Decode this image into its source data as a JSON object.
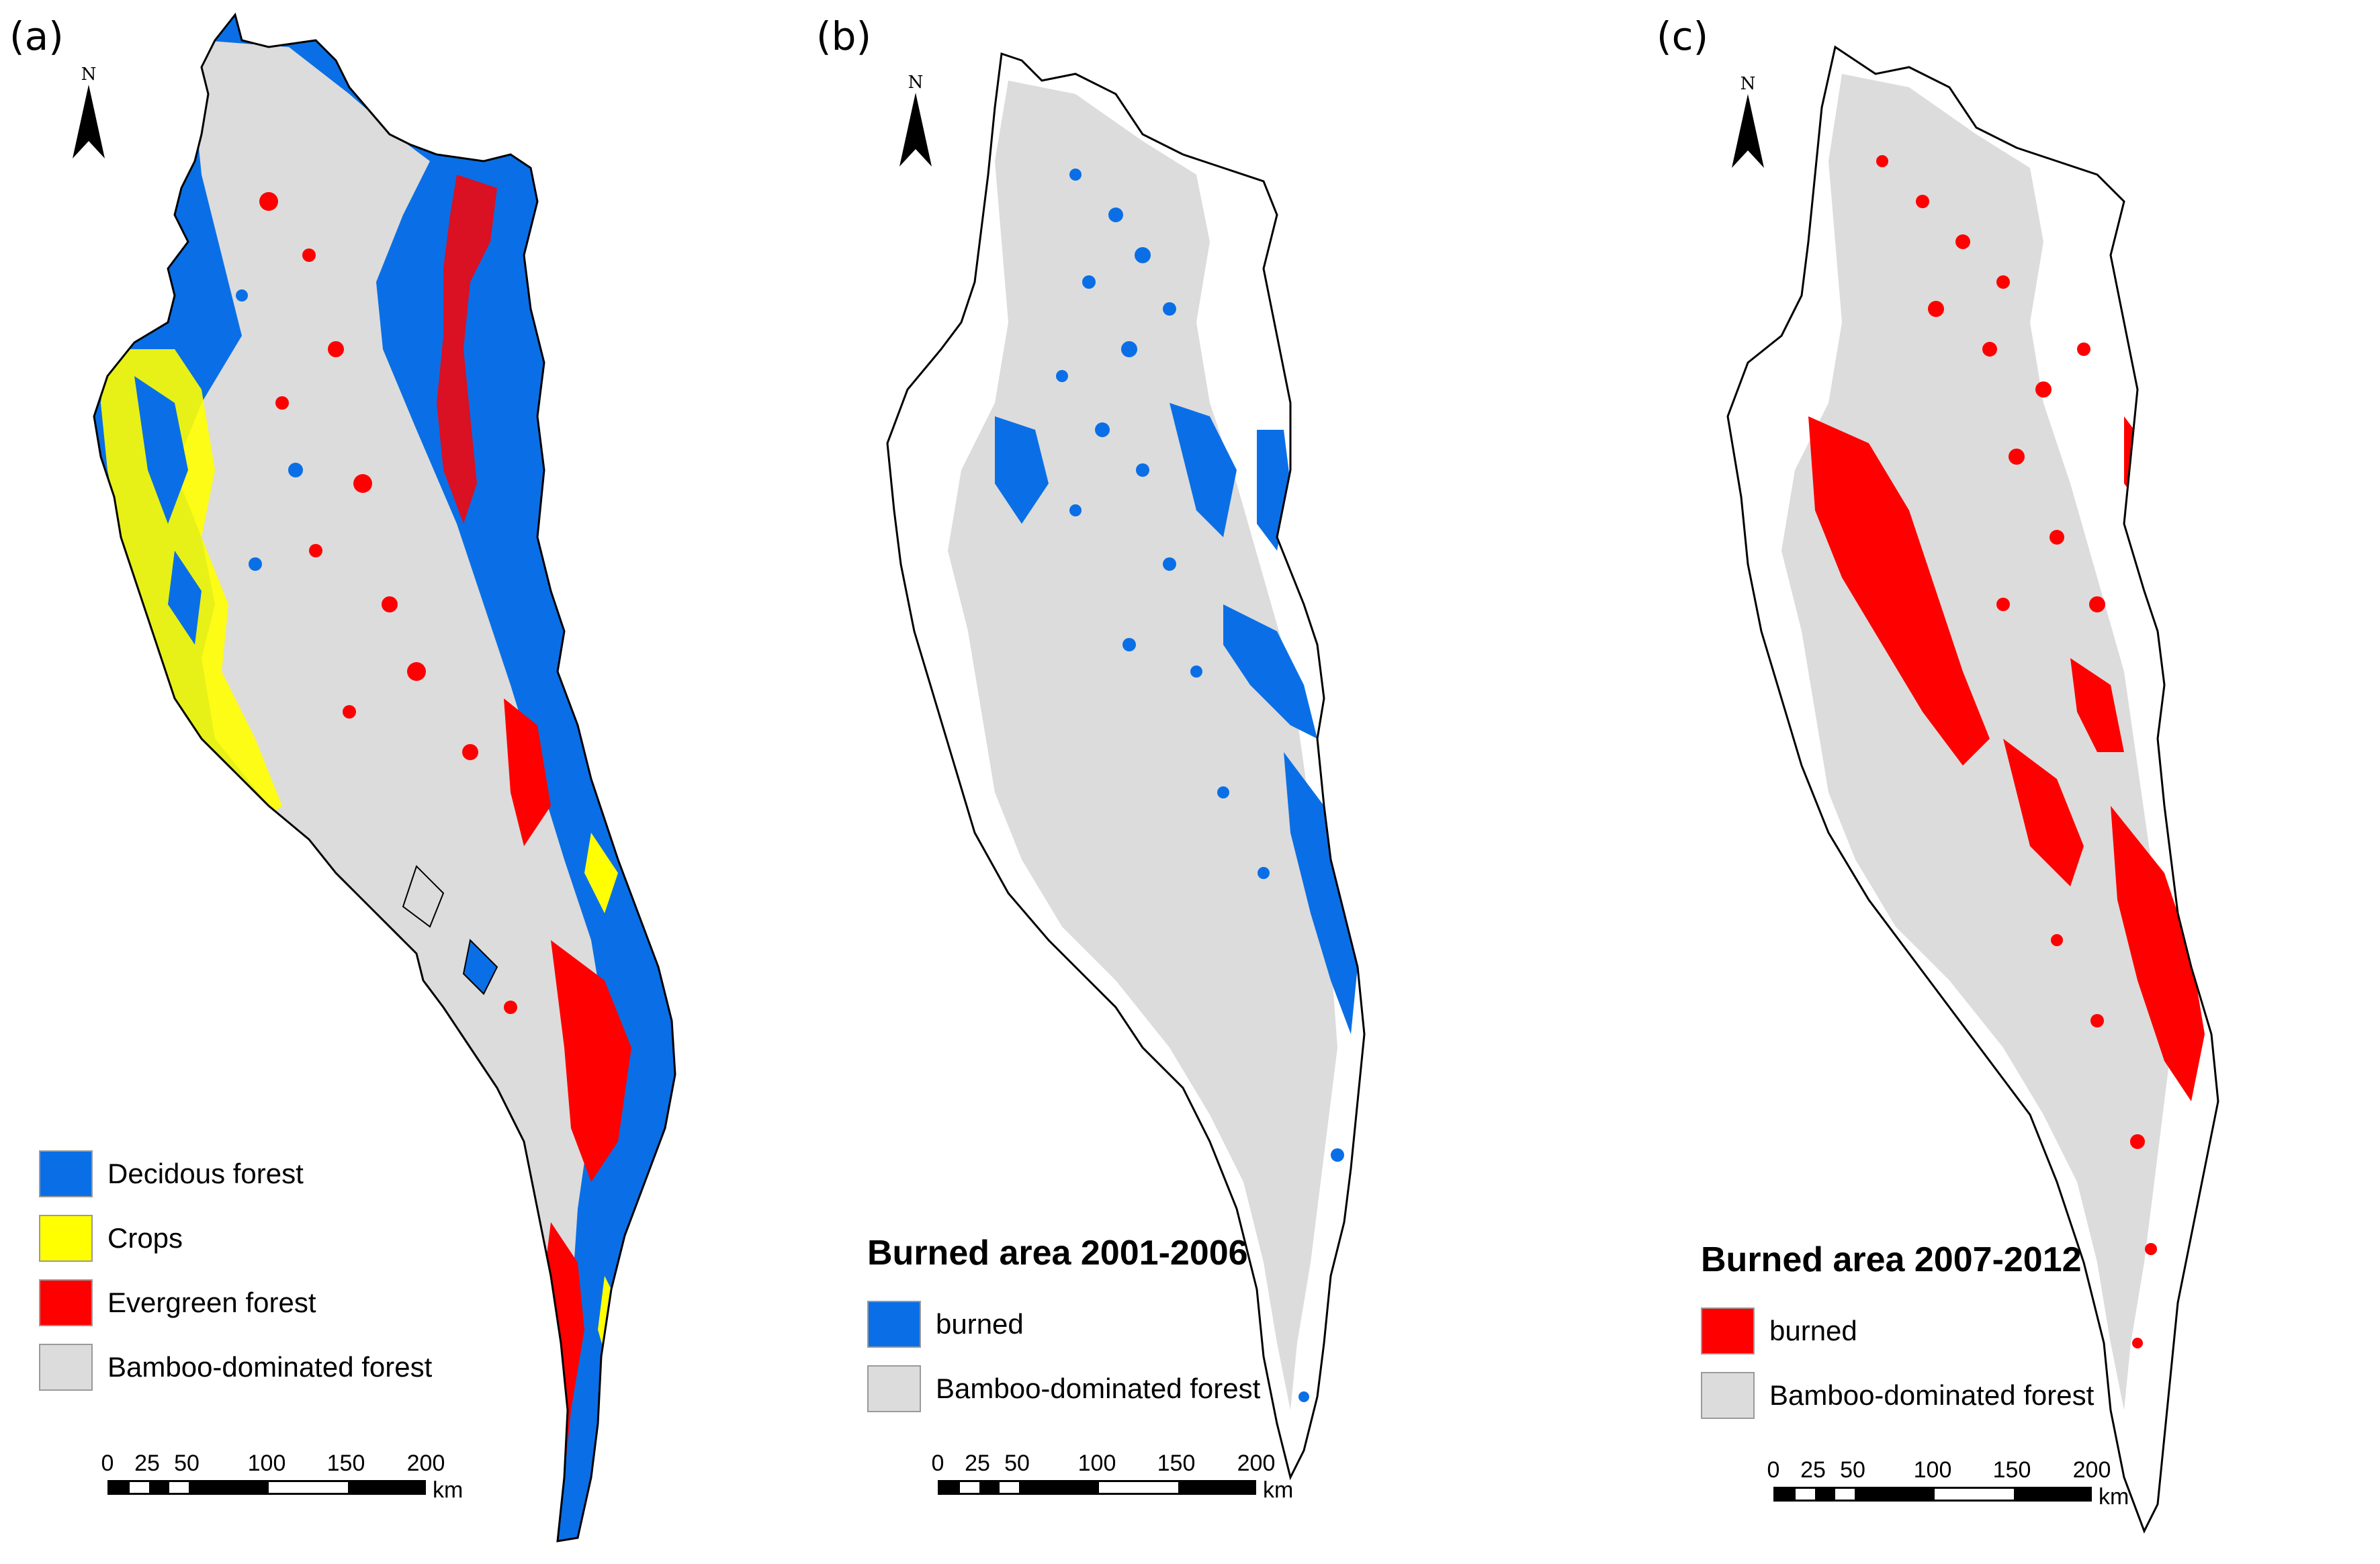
{
  "panels": [
    {
      "label": "(a)",
      "north": "N",
      "legend_title": "",
      "legend": [
        {
          "label": "Decidous forest",
          "color": "#0a6fe6"
        },
        {
          "label": "Crops",
          "color": "#ffff00"
        },
        {
          "label": "Evergreen forest",
          "color": "#ff0000"
        },
        {
          "label": "Bamboo-dominated forest",
          "color": "#dcdcdc"
        }
      ],
      "scale_ticks": [
        "0",
        "25",
        "50",
        "100",
        "150",
        "200"
      ],
      "scale_unit": "km"
    },
    {
      "label": "(b)",
      "north": "N",
      "legend_title": "Burned area 2001-2006",
      "legend": [
        {
          "label": "burned",
          "color": "#0a6fe6"
        },
        {
          "label": "Bamboo-dominated forest",
          "color": "#dcdcdc"
        }
      ],
      "scale_ticks": [
        "0",
        "25",
        "50",
        "100",
        "150",
        "200"
      ],
      "scale_unit": "km"
    },
    {
      "label": "(c)",
      "north": "N",
      "legend_title": "Burned area 2007-2012",
      "legend": [
        {
          "label": "burned",
          "color": "#ff0000"
        },
        {
          "label": "Bamboo-dominated forest",
          "color": "#dcdcdc"
        }
      ],
      "scale_ticks": [
        "0",
        "25",
        "50",
        "100",
        "150",
        "200"
      ],
      "scale_unit": "km"
    }
  ]
}
